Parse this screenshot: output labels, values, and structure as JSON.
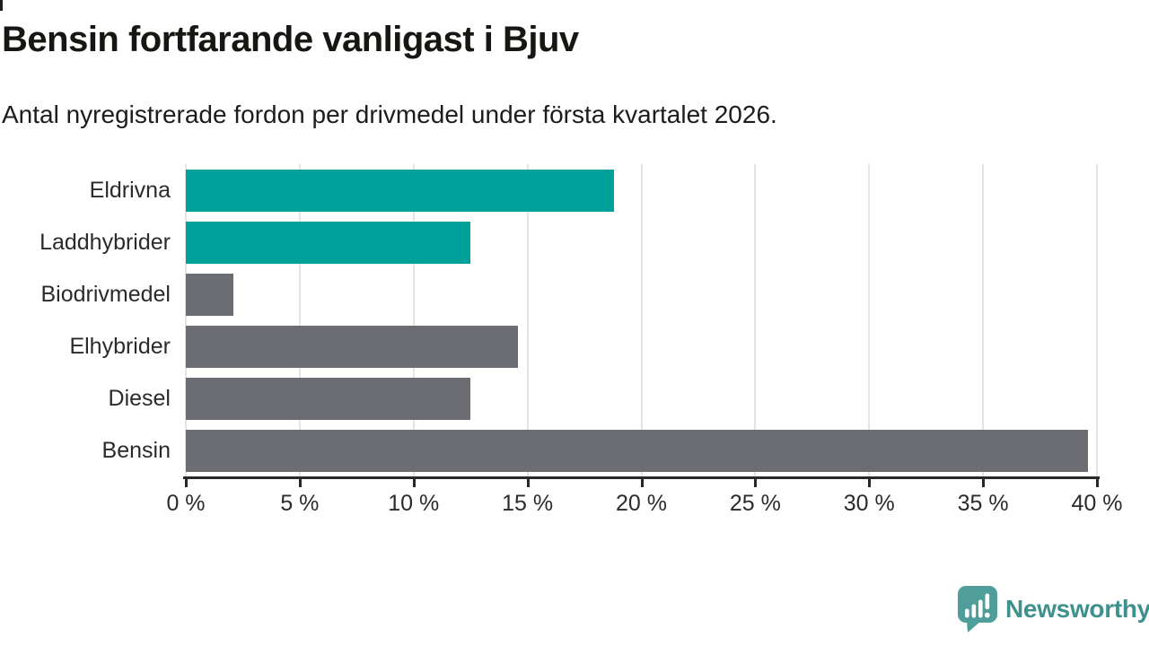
{
  "title": "Bensin fortfarande vanligast i Bjuv",
  "subtitle": "Antal nyregistrerade fordon per drivmedel under första kvartalet 2026.",
  "chart_data": {
    "type": "bar",
    "orientation": "horizontal",
    "categories": [
      "Eldrivna",
      "Laddhybrider",
      "Biodrivmedel",
      "Elhybrider",
      "Diesel",
      "Bensin"
    ],
    "values": [
      18.8,
      12.5,
      2.1,
      14.6,
      12.5,
      39.6
    ],
    "unit": "%",
    "xlim": [
      0,
      40
    ],
    "x_ticks": [
      0,
      5,
      10,
      15,
      20,
      25,
      30,
      35,
      40
    ],
    "x_tick_labels": [
      "0 %",
      "5 %",
      "10 %",
      "15 %",
      "20 %",
      "25 %",
      "30 %",
      "35 %",
      "40 %"
    ],
    "bar_colors": [
      "#00a19a",
      "#00a19a",
      "#6c6c73",
      "#6c6c73",
      "#6c6c73",
      "#6c6c73"
    ],
    "grid": "vertical-gridlines-every-5",
    "legend": "none",
    "xlabel": "",
    "ylabel": ""
  },
  "colors": {
    "accent_teal": "#00a19a",
    "neutral_gray": "#6c6c73",
    "gridline": "#e4e4e7",
    "axis": "#28282b",
    "label_text": "#2b2b2b",
    "logo_icon": "#4f9e99",
    "logo_text": "#3e918d"
  },
  "logo": {
    "text": "Newsworthy",
    "icon": "bar-chart-speech-bubble-icon"
  }
}
